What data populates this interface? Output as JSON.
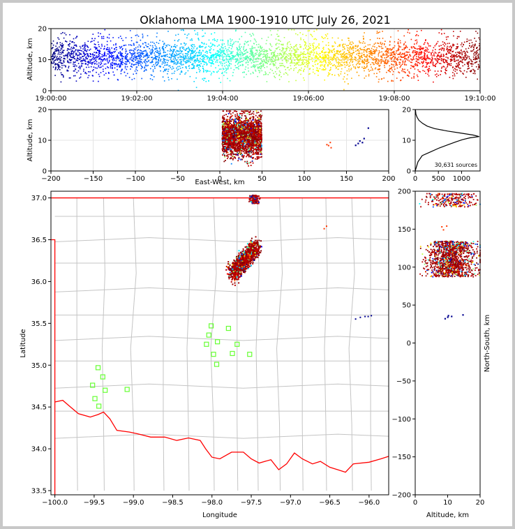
{
  "figure": {
    "title": "Oklahoma LMA 1900-1910 UTC July 26, 2021"
  },
  "chart_data": [
    {
      "type": "scatter",
      "panel": "altitude-time",
      "title": "Oklahoma LMA 1900-1910 UTC July 26, 2021",
      "xlabel": "",
      "ylabel": "Altitude, km",
      "xlim": [
        "19:00:00",
        "19:10:00"
      ],
      "ylim": [
        0,
        20
      ],
      "x_ticks": [
        "19:00:00",
        "19:02:00",
        "19:04:00",
        "19:06:00",
        "19:08:00",
        "19:10:00"
      ],
      "y_ticks": [
        "0",
        "10",
        "20"
      ],
      "colormap": "jet",
      "grid": true
    },
    {
      "type": "scatter",
      "panel": "altitude-eastwest",
      "xlabel": "East-West, km",
      "ylabel": "Altitude, km",
      "xlim": [
        -200,
        200
      ],
      "ylim": [
        0,
        20
      ],
      "x_ticks": [
        "−200",
        "−150",
        "−100",
        "−50",
        "0",
        "50",
        "100",
        "150",
        "200"
      ],
      "y_ticks": [
        "0",
        "10",
        "20"
      ],
      "grid": true
    },
    {
      "type": "line",
      "panel": "altitude-histogram",
      "xlim": [
        0,
        1400
      ],
      "ylim": [
        0,
        20
      ],
      "x_ticks": [
        "0",
        "500",
        "1000"
      ],
      "y_ticks": [
        "0",
        "10",
        "20"
      ],
      "annotation": "30,631 sources",
      "curve": [
        [
          0,
          0
        ],
        [
          20,
          1
        ],
        [
          60,
          3
        ],
        [
          150,
          5
        ],
        [
          300,
          6
        ],
        [
          520,
          7.5
        ],
        [
          700,
          8.5
        ],
        [
          880,
          9.5
        ],
        [
          1020,
          10.2
        ],
        [
          1180,
          10.8
        ],
        [
          1380,
          11.2
        ],
        [
          1250,
          11.7
        ],
        [
          1000,
          12.3
        ],
        [
          700,
          13
        ],
        [
          420,
          13.8
        ],
        [
          260,
          14.6
        ],
        [
          160,
          15.5
        ],
        [
          80,
          16.5
        ],
        [
          40,
          17.5
        ],
        [
          15,
          18.5
        ],
        [
          5,
          20
        ]
      ]
    },
    {
      "type": "scatter",
      "panel": "plan-view",
      "xlabel": "Longitude",
      "ylabel": "Latitude",
      "xlim": [
        -100.05,
        -95.75
      ],
      "ylim": [
        33.45,
        37.08
      ],
      "x_ticks": [
        "−100.0",
        "−99.5",
        "−99.0",
        "−98.5",
        "−98.0",
        "−97.5",
        "−97.0",
        "−96.5",
        "−96.0"
      ],
      "y_ticks": [
        "33.5",
        "34.0",
        "34.5",
        "35.0",
        "35.5",
        "36.0",
        "36.5",
        "37.0"
      ],
      "stations": [
        [
          -99.45,
          34.97
        ],
        [
          -99.39,
          34.86
        ],
        [
          -99.52,
          34.76
        ],
        [
          -99.36,
          34.7
        ],
        [
          -99.49,
          34.6
        ],
        [
          -99.44,
          34.51
        ],
        [
          -99.08,
          34.71
        ],
        [
          -98.01,
          35.47
        ],
        [
          -98.04,
          35.36
        ],
        [
          -98.07,
          35.25
        ],
        [
          -97.93,
          35.28
        ],
        [
          -97.79,
          35.44
        ],
        [
          -97.98,
          35.13
        ],
        [
          -97.74,
          35.14
        ],
        [
          -97.94,
          35.01
        ],
        [
          -97.68,
          35.25
        ],
        [
          -97.52,
          35.13
        ]
      ],
      "station_color": "#66ff33",
      "border_color": "#ff0000"
    },
    {
      "type": "scatter",
      "panel": "northsouth-altitude",
      "xlabel": "Altitude, km",
      "ylabel": "North-South, km",
      "xlim": [
        0,
        20
      ],
      "ylim": [
        -200,
        200
      ],
      "x_ticks": [
        "0",
        "10",
        "20"
      ],
      "y_ticks": [
        "−200",
        "−150",
        "−100",
        "−50",
        "0",
        "50",
        "100",
        "150",
        "200"
      ]
    }
  ]
}
